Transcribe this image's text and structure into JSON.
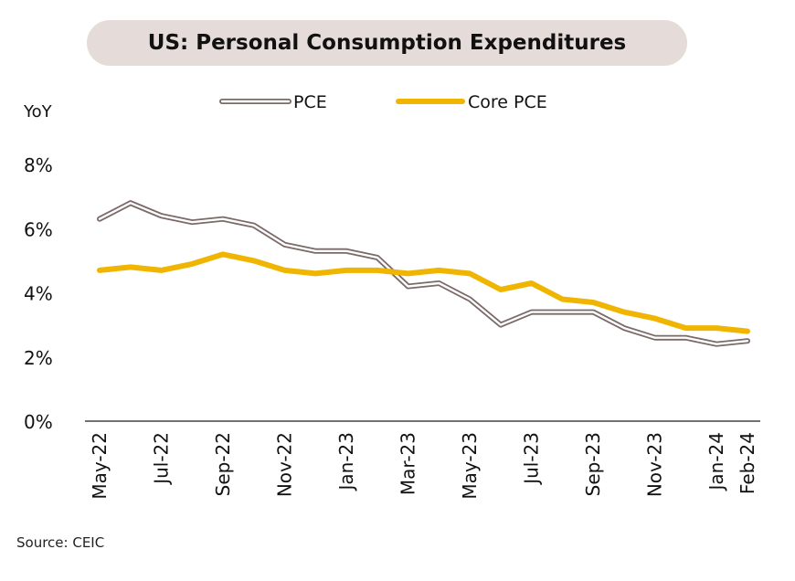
{
  "title": "US: Personal Consumption Expenditures",
  "source": "Source:  CEIC",
  "chart_data": {
    "type": "line",
    "title": "US: Personal Consumption Expenditures",
    "ylabel": "YoY",
    "xlabel": "",
    "ylim": [
      0,
      8
    ],
    "yticks": [
      {
        "value": 0,
        "label": "0%"
      },
      {
        "value": 2,
        "label": "2%"
      },
      {
        "value": 4,
        "label": "4%"
      },
      {
        "value": 6,
        "label": "6%"
      },
      {
        "value": 8,
        "label": "8%"
      }
    ],
    "categories": [
      "May-22",
      "Jun-22",
      "Jul-22",
      "Aug-22",
      "Sep-22",
      "Oct-22",
      "Nov-22",
      "Dec-22",
      "Jan-23",
      "Feb-23",
      "Mar-23",
      "Apr-23",
      "May-23",
      "Jun-23",
      "Jul-23",
      "Aug-23",
      "Sep-23",
      "Oct-23",
      "Nov-23",
      "Dec-23",
      "Jan-24",
      "Feb-24"
    ],
    "tick_labels": [
      "May-22",
      "Jul-22",
      "Sep-22",
      "Nov-22",
      "Jan-23",
      "Mar-23",
      "May-23",
      "Jul-23",
      "Sep-23",
      "Nov-23",
      "Jan-24",
      "Feb-24"
    ],
    "legend_position": "top-center",
    "grid": false,
    "series": [
      {
        "name": "PCE",
        "color": "#7a6a68",
        "values": [
          6.3,
          6.8,
          6.4,
          6.2,
          6.3,
          6.1,
          5.5,
          5.3,
          5.3,
          5.1,
          4.2,
          4.3,
          3.8,
          3.0,
          3.4,
          3.4,
          3.4,
          2.9,
          2.6,
          2.6,
          2.4,
          2.5
        ]
      },
      {
        "name": "Core PCE",
        "color": "#f0b500",
        "values": [
          4.7,
          4.8,
          4.7,
          4.9,
          5.2,
          5.0,
          4.7,
          4.6,
          4.7,
          4.7,
          4.6,
          4.7,
          4.6,
          4.1,
          4.3,
          3.8,
          3.7,
          3.4,
          3.2,
          2.9,
          2.9,
          2.8
        ]
      }
    ]
  }
}
